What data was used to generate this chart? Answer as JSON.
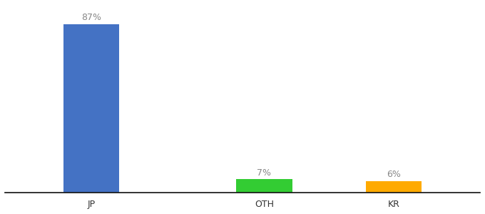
{
  "categories": [
    "JP",
    "OTH",
    "KR"
  ],
  "values": [
    87,
    7,
    6
  ],
  "bar_colors": [
    "#4472c4",
    "#33cc33",
    "#ffaa00"
  ],
  "labels": [
    "87%",
    "7%",
    "6%"
  ],
  "ylim": [
    0,
    97
  ],
  "background_color": "#ffffff",
  "label_fontsize": 9,
  "tick_fontsize": 9,
  "bar_width": 0.65,
  "x_positions": [
    1,
    3,
    4.5
  ]
}
